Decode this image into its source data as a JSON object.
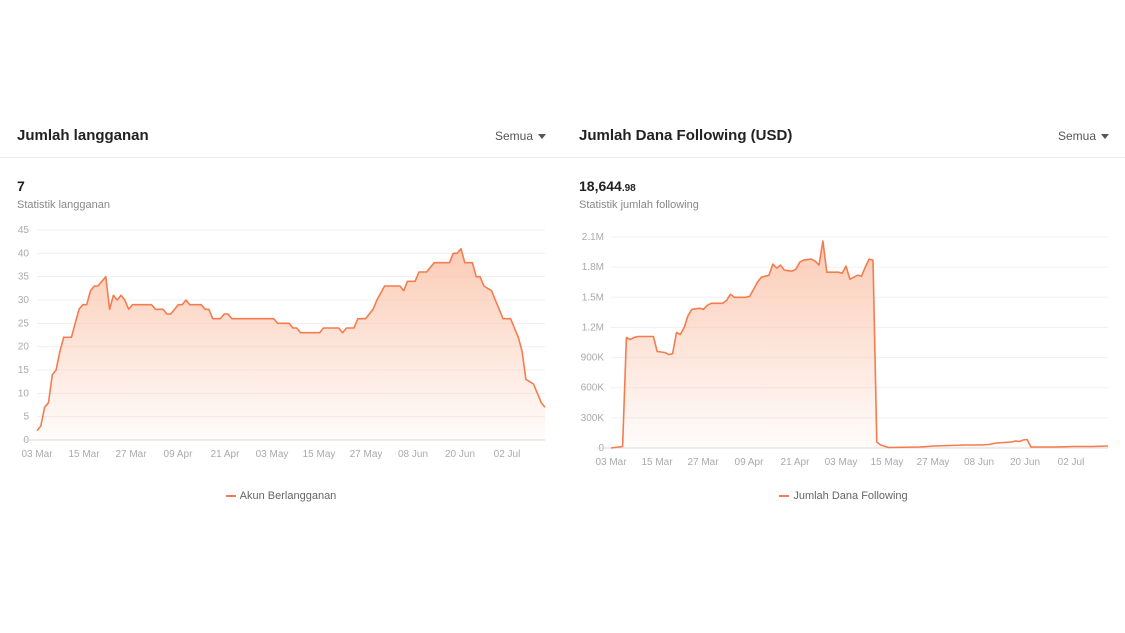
{
  "panels": [
    {
      "title": "Jumlah langganan",
      "filter": "Semua",
      "value_main": "7",
      "value_decimal": "",
      "subtitle": "Statistik langganan",
      "legend": "Akun Berlangganan"
    },
    {
      "title": "Jumlah Dana Following (USD)",
      "filter": "Semua",
      "value_main": "18,644",
      "value_decimal": ".98",
      "subtitle": "Statistik jumlah following",
      "legend": "Jumlah Dana Following"
    }
  ],
  "colors": {
    "line": "#f47c4f",
    "fill": "#fbc6ae",
    "grid": "#f0f0f0"
  },
  "chart_data": [
    {
      "type": "area",
      "title": "Jumlah langganan",
      "series_name": "Akun Berlangganan",
      "x_tick_labels": [
        "03 Mar",
        "15 Mar",
        "27 Mar",
        "09 Apr",
        "21 Apr",
        "03 May",
        "15 May",
        "27 May",
        "08 Jun",
        "20 Jun",
        "02 Jul"
      ],
      "y_tick_labels": [
        "0",
        "5",
        "10",
        "15",
        "20",
        "25",
        "30",
        "35",
        "40",
        "45"
      ],
      "ylim": [
        0,
        45
      ],
      "x_days_range": [
        0,
        133
      ],
      "points": [
        [
          0,
          2
        ],
        [
          1,
          3
        ],
        [
          2,
          7
        ],
        [
          3,
          8
        ],
        [
          4,
          14
        ],
        [
          5,
          15
        ],
        [
          6,
          19
        ],
        [
          7,
          22
        ],
        [
          9,
          22
        ],
        [
          10,
          25
        ],
        [
          11,
          28
        ],
        [
          12,
          29
        ],
        [
          13,
          29
        ],
        [
          14,
          32
        ],
        [
          15,
          33
        ],
        [
          16,
          33
        ],
        [
          17,
          34
        ],
        [
          18,
          35
        ],
        [
          19,
          28
        ],
        [
          20,
          31
        ],
        [
          21,
          30
        ],
        [
          22,
          31
        ],
        [
          23,
          30
        ],
        [
          24,
          28
        ],
        [
          25,
          29
        ],
        [
          30,
          29
        ],
        [
          31,
          28
        ],
        [
          33,
          28
        ],
        [
          34,
          27
        ],
        [
          35,
          27
        ],
        [
          37,
          29
        ],
        [
          38,
          29
        ],
        [
          39,
          30
        ],
        [
          40,
          29
        ],
        [
          43,
          29
        ],
        [
          44,
          28
        ],
        [
          45,
          28
        ],
        [
          46,
          26
        ],
        [
          48,
          26
        ],
        [
          49,
          27
        ],
        [
          50,
          27
        ],
        [
          51,
          26
        ],
        [
          62,
          26
        ],
        [
          63,
          25
        ],
        [
          66,
          25
        ],
        [
          67,
          24
        ],
        [
          68,
          24
        ],
        [
          69,
          23
        ],
        [
          74,
          23
        ],
        [
          75,
          24
        ],
        [
          79,
          24
        ],
        [
          80,
          23
        ],
        [
          81,
          24
        ],
        [
          83,
          24
        ],
        [
          84,
          26
        ],
        [
          86,
          26
        ],
        [
          88,
          28
        ],
        [
          89,
          30
        ],
        [
          91,
          33
        ],
        [
          95,
          33
        ],
        [
          96,
          32
        ],
        [
          97,
          34
        ],
        [
          99,
          34
        ],
        [
          100,
          36
        ],
        [
          102,
          36
        ],
        [
          103,
          37
        ],
        [
          104,
          38
        ],
        [
          108,
          38
        ],
        [
          109,
          40
        ],
        [
          110,
          40
        ],
        [
          111,
          41
        ],
        [
          112,
          38
        ],
        [
          114,
          38
        ],
        [
          115,
          35
        ],
        [
          116,
          35
        ],
        [
          117,
          33
        ],
        [
          119,
          32
        ],
        [
          120,
          30
        ],
        [
          121,
          28
        ],
        [
          122,
          26
        ],
        [
          124,
          26
        ],
        [
          125,
          24
        ],
        [
          126,
          22
        ],
        [
          127,
          19
        ],
        [
          128,
          13
        ],
        [
          130,
          12
        ],
        [
          131,
          10
        ],
        [
          132,
          8
        ],
        [
          133,
          7
        ]
      ]
    },
    {
      "type": "area",
      "title": "Jumlah Dana Following (USD)",
      "series_name": "Jumlah Dana Following",
      "x_tick_labels": [
        "03 Mar",
        "15 Mar",
        "27 Mar",
        "09 Apr",
        "21 Apr",
        "03 May",
        "15 May",
        "27 May",
        "08 Jun",
        "20 Jun",
        "02 Jul"
      ],
      "y_tick_labels": [
        "0",
        "300K",
        "600K",
        "900K",
        "1.2M",
        "1.5M",
        "1.8M",
        "2.1M"
      ],
      "ylim": [
        0,
        2100000
      ],
      "x_days_range": [
        0,
        129
      ],
      "points": [
        [
          0,
          0
        ],
        [
          1,
          5000
        ],
        [
          2,
          10000
        ],
        [
          3,
          15000
        ],
        [
          4,
          1100000
        ],
        [
          5,
          1080000
        ],
        [
          6,
          1100000
        ],
        [
          7,
          1110000
        ],
        [
          11,
          1110000
        ],
        [
          12,
          960000
        ],
        [
          14,
          950000
        ],
        [
          15,
          930000
        ],
        [
          16,
          940000
        ],
        [
          17,
          1150000
        ],
        [
          18,
          1130000
        ],
        [
          19,
          1200000
        ],
        [
          20,
          1320000
        ],
        [
          21,
          1380000
        ],
        [
          23,
          1390000
        ],
        [
          24,
          1380000
        ],
        [
          25,
          1420000
        ],
        [
          26,
          1440000
        ],
        [
          29,
          1440000
        ],
        [
          30,
          1470000
        ],
        [
          31,
          1530000
        ],
        [
          32,
          1500000
        ],
        [
          35,
          1500000
        ],
        [
          36,
          1510000
        ],
        [
          37,
          1580000
        ],
        [
          38,
          1650000
        ],
        [
          39,
          1700000
        ],
        [
          41,
          1720000
        ],
        [
          42,
          1830000
        ],
        [
          43,
          1790000
        ],
        [
          44,
          1820000
        ],
        [
          45,
          1770000
        ],
        [
          47,
          1760000
        ],
        [
          48,
          1780000
        ],
        [
          49,
          1850000
        ],
        [
          50,
          1870000
        ],
        [
          52,
          1880000
        ],
        [
          53,
          1860000
        ],
        [
          54,
          1820000
        ],
        [
          55,
          2060000
        ],
        [
          56,
          1750000
        ],
        [
          59,
          1750000
        ],
        [
          60,
          1740000
        ],
        [
          61,
          1810000
        ],
        [
          62,
          1680000
        ],
        [
          63,
          1700000
        ],
        [
          64,
          1720000
        ],
        [
          65,
          1710000
        ],
        [
          66,
          1800000
        ],
        [
          67,
          1880000
        ],
        [
          68,
          1870000
        ],
        [
          69,
          60000
        ],
        [
          70,
          30000
        ],
        [
          72,
          5000
        ],
        [
          80,
          10000
        ],
        [
          82,
          15000
        ],
        [
          84,
          20000
        ],
        [
          88,
          25000
        ],
        [
          92,
          30000
        ],
        [
          96,
          30000
        ],
        [
          98,
          35000
        ],
        [
          100,
          50000
        ],
        [
          104,
          60000
        ],
        [
          105,
          70000
        ],
        [
          106,
          65000
        ],
        [
          107,
          80000
        ],
        [
          108,
          85000
        ],
        [
          109,
          10000
        ],
        [
          115,
          10000
        ],
        [
          120,
          15000
        ],
        [
          125,
          15000
        ],
        [
          129,
          20000
        ]
      ]
    }
  ]
}
